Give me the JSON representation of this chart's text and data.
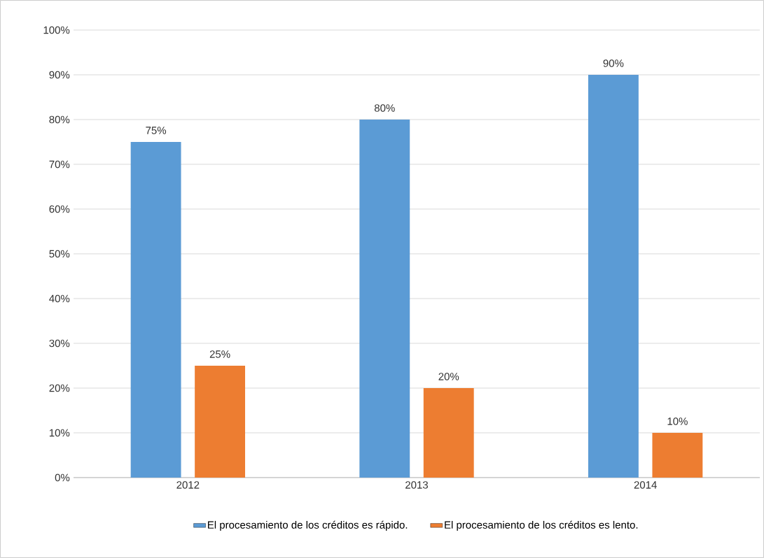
{
  "chart_data": {
    "type": "bar",
    "categories": [
      "2012",
      "2013",
      "2014"
    ],
    "series": [
      {
        "name": "El procesamiento de los créditos es rápido.",
        "color": "#5b9bd5",
        "values": [
          75,
          80,
          90
        ],
        "value_labels": [
          "75%",
          "80%",
          "90%"
        ]
      },
      {
        "name": "El procesamiento de los créditos es lento.",
        "color": "#ed7d31",
        "values": [
          25,
          20,
          10
        ],
        "value_labels": [
          "25%",
          "20%",
          "10%"
        ]
      }
    ],
    "ylim": [
      0,
      100
    ],
    "yticks": [
      {
        "value": 0,
        "label": "0%"
      },
      {
        "value": 10,
        "label": "10%"
      },
      {
        "value": 20,
        "label": "20%"
      },
      {
        "value": 30,
        "label": "30%"
      },
      {
        "value": 40,
        "label": "40%"
      },
      {
        "value": 50,
        "label": "50%"
      },
      {
        "value": 60,
        "label": "60%"
      },
      {
        "value": 70,
        "label": "70%"
      },
      {
        "value": 80,
        "label": "80%"
      },
      {
        "value": 90,
        "label": "90%"
      },
      {
        "value": 100,
        "label": "100%"
      }
    ],
    "grid": "y",
    "legend": "bottom"
  }
}
